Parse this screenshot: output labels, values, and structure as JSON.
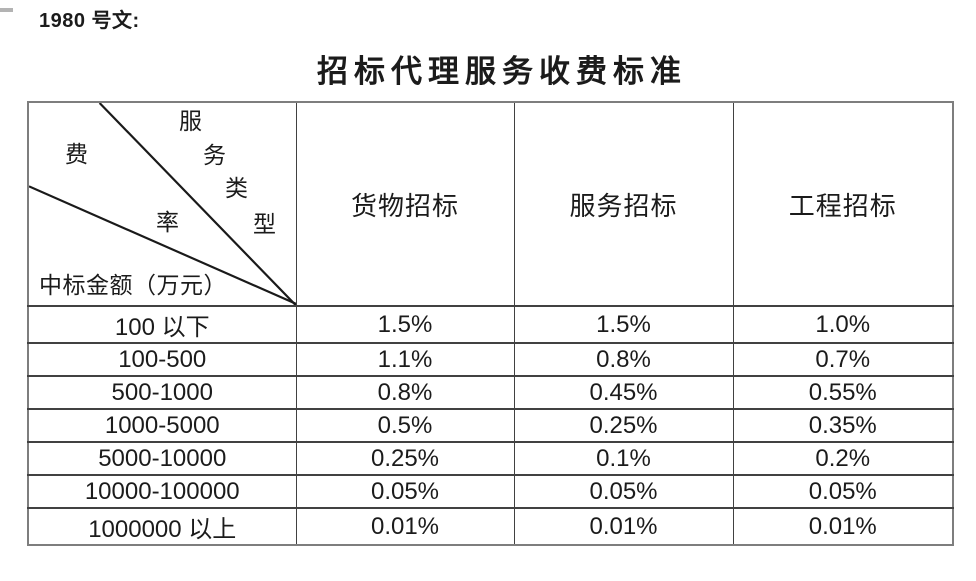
{
  "doc_label": "1980 号文:",
  "title": "招标代理服务收费标准",
  "table": {
    "corner": {
      "axis_service_type_chars": [
        "服",
        "务",
        "类",
        "型"
      ],
      "axis_fee_rate_chars": [
        "费",
        "率"
      ],
      "axis_amount_label": "中标金额（万元）"
    },
    "columns": [
      "货物招标",
      "服务招标",
      "工程招标"
    ],
    "rows": [
      {
        "range": "100 以下",
        "values": [
          "1.5%",
          "1.5%",
          "1.0%"
        ]
      },
      {
        "range": "100-500",
        "values": [
          "1.1%",
          "0.8%",
          "0.7%"
        ]
      },
      {
        "range": "500-1000",
        "values": [
          "0.8%",
          "0.45%",
          "0.55%"
        ]
      },
      {
        "range": "1000-5000",
        "values": [
          "0.5%",
          "0.25%",
          "0.35%"
        ]
      },
      {
        "range": "5000-10000",
        "values": [
          "0.25%",
          "0.1%",
          "0.2%"
        ]
      },
      {
        "range": "10000-100000",
        "values": [
          "0.05%",
          "0.05%",
          "0.05%"
        ]
      },
      {
        "range": "1000000 以上",
        "values": [
          "0.01%",
          "0.01%",
          "0.01%"
        ]
      }
    ]
  },
  "colors": {
    "text": "#1b1b1b",
    "outer_border": "#7e7e7e",
    "inner_border": "#414141",
    "diagonal_line": "#1a1a1a"
  }
}
